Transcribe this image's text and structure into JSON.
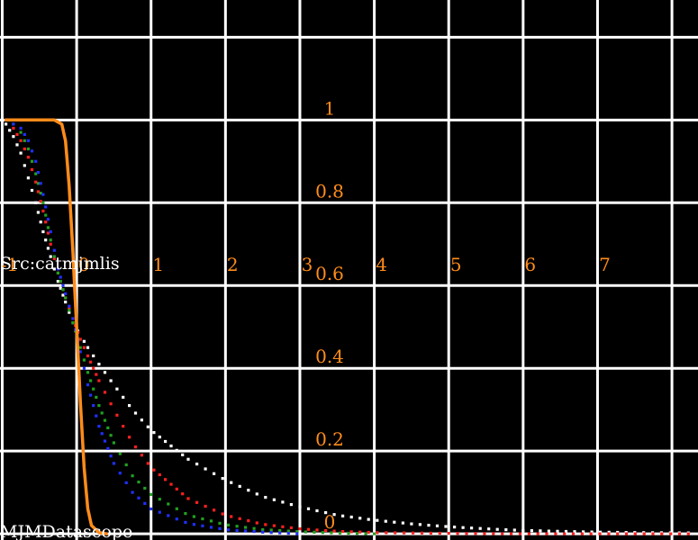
{
  "source_text": "Src:catmjmlis",
  "brand_text": "MJMDatascope",
  "colors": {
    "background": "#000000",
    "grid": "#ffffff",
    "tick_labels": "#ff8c1a",
    "caption_text": "#ffffff"
  },
  "chart_data": {
    "type": "line",
    "title": "",
    "xlabel": "",
    "ylabel": "",
    "xlim": [
      -1.03,
      8.35
    ],
    "ylim": [
      -0.015,
      1.29
    ],
    "x_ticks": [
      -1,
      0,
      1,
      2,
      3,
      4,
      5,
      6,
      7
    ],
    "x_tick_labels": [
      "-1",
      "0",
      "1",
      "2",
      "3",
      "4",
      "5",
      "6",
      "7"
    ],
    "y_ticks": [
      0,
      0.2,
      0.4,
      0.6,
      0.8,
      1
    ],
    "y_tick_labels": [
      "0",
      "0.2",
      "0.4",
      "0.6",
      "0.8",
      "1"
    ],
    "grid": true,
    "series": [
      {
        "color": "#ff8c1a",
        "style": "solid",
        "points": [
          [
            -0.95,
            1.0
          ],
          [
            -0.3,
            1.0
          ],
          [
            -0.2,
            0.99
          ],
          [
            -0.15,
            0.95
          ],
          [
            -0.1,
            0.84
          ],
          [
            -0.05,
            0.68
          ],
          [
            0.0,
            0.5
          ],
          [
            0.05,
            0.32
          ],
          [
            0.1,
            0.16
          ],
          [
            0.15,
            0.06
          ],
          [
            0.2,
            0.02
          ],
          [
            0.3,
            0.003
          ],
          [
            0.4,
            0.0
          ]
        ]
      },
      {
        "color": "#ffffff",
        "style": "dotted",
        "points": [
          [
            -0.95,
            0.99
          ],
          [
            -0.85,
            0.96
          ],
          [
            -0.75,
            0.92
          ],
          [
            -0.65,
            0.86
          ],
          [
            -0.55,
            0.8
          ],
          [
            -0.45,
            0.73
          ],
          [
            -0.35,
            0.67
          ],
          [
            -0.25,
            0.61
          ],
          [
            -0.15,
            0.56
          ],
          [
            -0.05,
            0.51
          ],
          [
            0.05,
            0.48
          ],
          [
            0.15,
            0.45
          ],
          [
            0.3,
            0.41
          ],
          [
            0.5,
            0.36
          ],
          [
            0.75,
            0.3
          ],
          [
            1.0,
            0.25
          ],
          [
            1.5,
            0.18
          ],
          [
            2.0,
            0.13
          ],
          [
            2.5,
            0.09
          ],
          [
            3.0,
            0.065
          ],
          [
            3.5,
            0.045
          ],
          [
            4.0,
            0.033
          ],
          [
            4.5,
            0.024
          ],
          [
            5.0,
            0.017
          ],
          [
            5.5,
            0.012
          ],
          [
            6.0,
            0.008
          ],
          [
            6.5,
            0.006
          ],
          [
            7.0,
            0.004
          ],
          [
            7.5,
            0.003
          ],
          [
            8.3,
            0.002
          ]
        ]
      },
      {
        "color": "#ff2020",
        "style": "dotted",
        "points": [
          [
            -0.95,
            1.0
          ],
          [
            -0.85,
            0.98
          ],
          [
            -0.75,
            0.95
          ],
          [
            -0.65,
            0.91
          ],
          [
            -0.55,
            0.85
          ],
          [
            -0.45,
            0.78
          ],
          [
            -0.35,
            0.7
          ],
          [
            -0.25,
            0.63
          ],
          [
            -0.15,
            0.57
          ],
          [
            -0.05,
            0.52
          ],
          [
            0.05,
            0.47
          ],
          [
            0.15,
            0.43
          ],
          [
            0.3,
            0.37
          ],
          [
            0.5,
            0.3
          ],
          [
            0.75,
            0.22
          ],
          [
            1.0,
            0.16
          ],
          [
            1.5,
            0.085
          ],
          [
            2.0,
            0.045
          ],
          [
            2.5,
            0.023
          ],
          [
            3.0,
            0.012
          ],
          [
            3.5,
            0.006
          ],
          [
            4.0,
            0.003
          ],
          [
            5.0,
            0.001
          ],
          [
            6.0,
            0.0
          ],
          [
            8.3,
            0.0
          ]
        ]
      },
      {
        "color": "#20a020",
        "style": "dotted",
        "points": [
          [
            -0.95,
            1.0
          ],
          [
            -0.85,
            0.99
          ],
          [
            -0.75,
            0.97
          ],
          [
            -0.65,
            0.93
          ],
          [
            -0.55,
            0.87
          ],
          [
            -0.45,
            0.8
          ],
          [
            -0.35,
            0.71
          ],
          [
            -0.25,
            0.63
          ],
          [
            -0.15,
            0.57
          ],
          [
            -0.05,
            0.51
          ],
          [
            0.05,
            0.45
          ],
          [
            0.15,
            0.39
          ],
          [
            0.3,
            0.31
          ],
          [
            0.5,
            0.22
          ],
          [
            0.75,
            0.14
          ],
          [
            1.0,
            0.095
          ],
          [
            1.5,
            0.045
          ],
          [
            2.0,
            0.022
          ],
          [
            2.5,
            0.01
          ],
          [
            3.0,
            0.005
          ],
          [
            3.5,
            0.002
          ],
          [
            4.0,
            0.0
          ]
        ]
      },
      {
        "color": "#2030ff",
        "style": "dotted",
        "points": [
          [
            -0.95,
            1.0
          ],
          [
            -0.85,
            0.99
          ],
          [
            -0.75,
            0.98
          ],
          [
            -0.65,
            0.95
          ],
          [
            -0.55,
            0.9
          ],
          [
            -0.45,
            0.82
          ],
          [
            -0.35,
            0.73
          ],
          [
            -0.25,
            0.64
          ],
          [
            -0.15,
            0.58
          ],
          [
            -0.05,
            0.52
          ],
          [
            0.05,
            0.44
          ],
          [
            0.15,
            0.36
          ],
          [
            0.3,
            0.26
          ],
          [
            0.5,
            0.17
          ],
          [
            0.75,
            0.1
          ],
          [
            1.0,
            0.06
          ],
          [
            1.5,
            0.025
          ],
          [
            2.0,
            0.01
          ],
          [
            2.5,
            0.004
          ],
          [
            3.0,
            0.0
          ]
        ]
      }
    ]
  }
}
